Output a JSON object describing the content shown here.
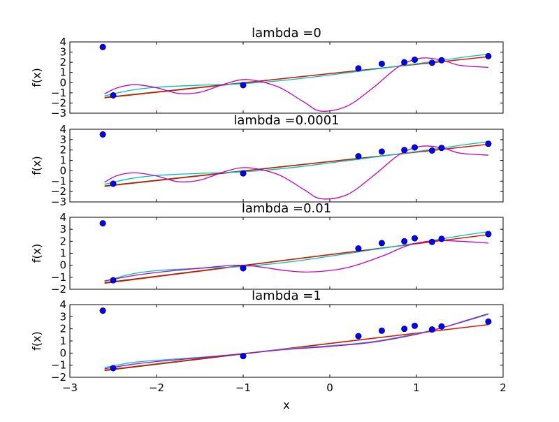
{
  "chart_data": {
    "type": "line",
    "xlabel": "x",
    "xlim": [
      -3,
      2
    ],
    "xticks": [
      -3,
      -2,
      -1,
      0,
      1,
      2
    ],
    "x_tick_labels": [
      "−3",
      "−2",
      "−1",
      "0",
      "1",
      "2"
    ],
    "points": {
      "x": [
        -2.62,
        -2.5,
        -1.0,
        0.33,
        0.6,
        0.86,
        0.98,
        1.18,
        1.29,
        1.83
      ],
      "y": [
        3.5,
        -1.25,
        -0.25,
        1.4,
        1.85,
        2.0,
        2.25,
        1.95,
        2.2,
        2.6
      ],
      "color": "#0000ff"
    },
    "panels": [
      {
        "title": "lambda =0",
        "ylabel": "f(x)",
        "ylim": [
          -3,
          4
        ],
        "yticks": [
          -3,
          -2,
          -1,
          0,
          1,
          2,
          3,
          4
        ],
        "y_tick_labels": [
          "−3",
          "−2",
          "−1",
          "0",
          "1",
          "2",
          "3",
          "4"
        ],
        "series": [
          {
            "color": "#008000",
            "x": [
              -2.6,
              1.83
            ],
            "y": [
              -1.45,
              2.55
            ]
          },
          {
            "color": "#ff0000",
            "x": [
              -2.6,
              1.83
            ],
            "y": [
              -1.5,
              2.55
            ]
          },
          {
            "color": "#00bfbf",
            "x": [
              -2.6,
              -2.3,
              -2.0,
              -1.5,
              -1.0,
              -0.5,
              0.0,
              0.5,
              1.0,
              1.5,
              1.83
            ],
            "y": [
              -1.3,
              -0.75,
              -0.45,
              -0.25,
              -0.1,
              0.25,
              0.75,
              1.3,
              1.85,
              2.45,
              2.8
            ]
          },
          {
            "color": "#bf00bf",
            "x": [
              -2.6,
              -2.45,
              -2.25,
              -2.0,
              -1.75,
              -1.5,
              -1.2,
              -0.95,
              -0.6,
              -0.3,
              -0.1,
              0.2,
              0.5,
              0.8,
              1.05,
              1.3,
              1.5,
              1.83
            ],
            "y": [
              -1.1,
              -0.5,
              -0.2,
              -0.5,
              -1.05,
              -0.95,
              -0.1,
              0.3,
              -0.4,
              -1.9,
              -2.8,
              -2.3,
              -0.5,
              1.6,
              2.4,
              2.2,
              1.7,
              1.5
            ]
          }
        ]
      },
      {
        "title": "lambda =0.0001",
        "ylabel": "f(x)",
        "ylim": [
          -3,
          4
        ],
        "yticks": [
          -3,
          -2,
          -1,
          0,
          1,
          2,
          3,
          4
        ],
        "y_tick_labels": [
          "−3",
          "−2",
          "−1",
          "0",
          "1",
          "2",
          "3",
          "4"
        ],
        "series": [
          {
            "color": "#008000",
            "x": [
              -2.6,
              1.83
            ],
            "y": [
              -1.45,
              2.55
            ]
          },
          {
            "color": "#ff0000",
            "x": [
              -2.6,
              1.83
            ],
            "y": [
              -1.5,
              2.55
            ]
          },
          {
            "color": "#00bfbf",
            "x": [
              -2.6,
              -2.3,
              -2.0,
              -1.5,
              -1.0,
              -0.5,
              0.0,
              0.5,
              1.0,
              1.5,
              1.83
            ],
            "y": [
              -1.3,
              -0.75,
              -0.45,
              -0.25,
              -0.1,
              0.25,
              0.75,
              1.3,
              1.85,
              2.45,
              2.8
            ]
          },
          {
            "color": "#bf00bf",
            "x": [
              -2.6,
              -2.45,
              -2.25,
              -2.0,
              -1.75,
              -1.5,
              -1.2,
              -0.95,
              -0.6,
              -0.3,
              -0.1,
              0.2,
              0.5,
              0.8,
              1.05,
              1.3,
              1.5,
              1.83
            ],
            "y": [
              -1.1,
              -0.45,
              -0.2,
              -0.5,
              -1.05,
              -0.9,
              -0.05,
              0.3,
              -0.35,
              -1.8,
              -2.7,
              -2.3,
              -0.5,
              1.55,
              2.35,
              2.2,
              1.7,
              1.5
            ]
          }
        ]
      },
      {
        "title": "lambda =0.01",
        "ylabel": "f(x)",
        "ylim": [
          -2,
          4
        ],
        "yticks": [
          -2,
          -1,
          0,
          1,
          2,
          3,
          4
        ],
        "y_tick_labels": [
          "−2",
          "−1",
          "0",
          "1",
          "2",
          "3",
          "4"
        ],
        "series": [
          {
            "color": "#008000",
            "x": [
              -2.6,
              1.83
            ],
            "y": [
              -1.45,
              2.55
            ]
          },
          {
            "color": "#ff0000",
            "x": [
              -2.6,
              1.83
            ],
            "y": [
              -1.5,
              2.55
            ]
          },
          {
            "color": "#00bfbf",
            "x": [
              -2.6,
              -2.3,
              -2.0,
              -1.5,
              -1.0,
              -0.5,
              0.0,
              0.5,
              1.0,
              1.5,
              1.83
            ],
            "y": [
              -1.35,
              -0.75,
              -0.45,
              -0.25,
              -0.1,
              0.25,
              0.75,
              1.3,
              1.85,
              2.45,
              2.8
            ]
          },
          {
            "color": "#bf00bf",
            "x": [
              -2.6,
              -2.3,
              -2.0,
              -1.5,
              -1.0,
              -0.5,
              -0.2,
              0.2,
              0.6,
              0.9,
              1.2,
              1.5,
              1.83
            ],
            "y": [
              -1.3,
              -0.9,
              -0.6,
              -0.25,
              0.0,
              -0.45,
              -0.55,
              -0.2,
              0.75,
              1.65,
              2.05,
              2.0,
              1.85
            ]
          }
        ]
      },
      {
        "title": "lambda =1",
        "ylabel": "f(x)",
        "ylim": [
          -2,
          4
        ],
        "yticks": [
          -2,
          -1,
          0,
          1,
          2,
          3,
          4
        ],
        "y_tick_labels": [
          "−2",
          "−1",
          "0",
          "1",
          "2",
          "3",
          "4"
        ],
        "series": [
          {
            "color": "#008000",
            "x": [
              -2.6,
              1.83
            ],
            "y": [
              -1.45,
              2.35
            ]
          },
          {
            "color": "#ff0000",
            "x": [
              -2.6,
              1.83
            ],
            "y": [
              -1.4,
              2.35
            ]
          },
          {
            "color": "#00bfbf",
            "x": [
              -2.6,
              -2.3,
              -2.0,
              -1.5,
              -1.0,
              -0.5,
              0.0,
              0.5,
              1.0,
              1.3,
              1.6,
              1.83
            ],
            "y": [
              -1.2,
              -0.8,
              -0.6,
              -0.35,
              -0.05,
              0.35,
              0.6,
              0.95,
              1.6,
              2.1,
              2.7,
              3.2
            ]
          },
          {
            "color": "#bf00bf",
            "x": [
              -2.6,
              -2.3,
              -2.0,
              -1.5,
              -1.0,
              -0.5,
              0.0,
              0.5,
              1.0,
              1.3,
              1.6,
              1.83
            ],
            "y": [
              -1.3,
              -0.95,
              -0.7,
              -0.4,
              -0.05,
              0.3,
              0.55,
              0.9,
              1.55,
              2.1,
              2.75,
              3.25
            ]
          }
        ]
      }
    ]
  }
}
